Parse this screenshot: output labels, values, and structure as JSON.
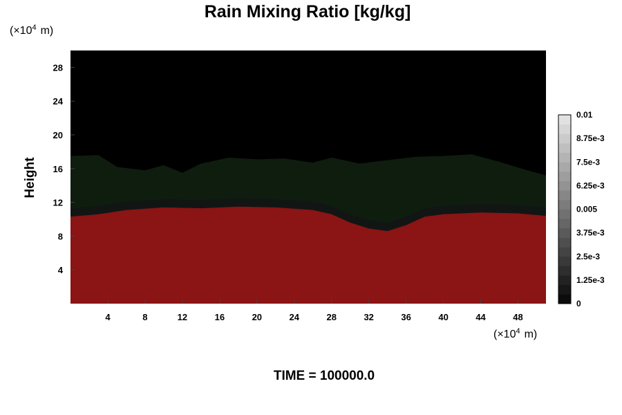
{
  "chart_data": {
    "type": "heatmap",
    "title": "Rain Mixing Ratio [kg/kg]",
    "ylabel": "Height",
    "xlabel": "",
    "x_unit": "m",
    "y_unit": "m",
    "unit_scale_exponent": "4",
    "xlim": [
      0,
      51
    ],
    "ylim": [
      0,
      30
    ],
    "x_ticks": [
      4,
      8,
      12,
      16,
      20,
      24,
      28,
      32,
      36,
      40,
      44,
      48
    ],
    "y_ticks": [
      4,
      8,
      12,
      16,
      20,
      24,
      28
    ],
    "colorbar": {
      "range": [
        0,
        0.01
      ],
      "levels": 20,
      "tick_labels": [
        "0",
        "1.25e-3",
        "2.5e-3",
        "3.75e-3",
        "0.005",
        "6.25e-3",
        "7.5e-3",
        "8.75e-3",
        "0.01"
      ],
      "tick_values": [
        0,
        0.00125,
        0.0025,
        0.00375,
        0.005,
        0.00625,
        0.0075,
        0.00875,
        0.01
      ]
    },
    "field_colors": {
      "background": "#000000",
      "rain_layer": "#8b1414",
      "cloud_layer": "#0f1d0f"
    },
    "rain_top_profile": [
      [
        0,
        10.3
      ],
      [
        3,
        10.6
      ],
      [
        6,
        11.1
      ],
      [
        10,
        11.4
      ],
      [
        14,
        11.3
      ],
      [
        18,
        11.5
      ],
      [
        22,
        11.4
      ],
      [
        26,
        11.1
      ],
      [
        28,
        10.6
      ],
      [
        30,
        9.6
      ],
      [
        32,
        8.9
      ],
      [
        34,
        8.6
      ],
      [
        36,
        9.3
      ],
      [
        38,
        10.3
      ],
      [
        40,
        10.6
      ],
      [
        44,
        10.8
      ],
      [
        48,
        10.7
      ],
      [
        51,
        10.4
      ]
    ],
    "cloud_top_profile": [
      [
        0,
        17.5
      ],
      [
        3,
        17.6
      ],
      [
        5,
        16.2
      ],
      [
        8,
        15.8
      ],
      [
        10,
        16.4
      ],
      [
        12,
        15.5
      ],
      [
        14,
        16.6
      ],
      [
        17,
        17.3
      ],
      [
        20,
        17.1
      ],
      [
        23,
        17.2
      ],
      [
        26,
        16.7
      ],
      [
        28,
        17.3
      ],
      [
        31,
        16.6
      ],
      [
        34,
        17.0
      ],
      [
        37,
        17.4
      ],
      [
        40,
        17.5
      ],
      [
        43,
        17.7
      ],
      [
        46,
        16.8
      ],
      [
        49,
        15.8
      ],
      [
        51,
        15.2
      ]
    ]
  },
  "time_label": "TIME = 100000.0"
}
